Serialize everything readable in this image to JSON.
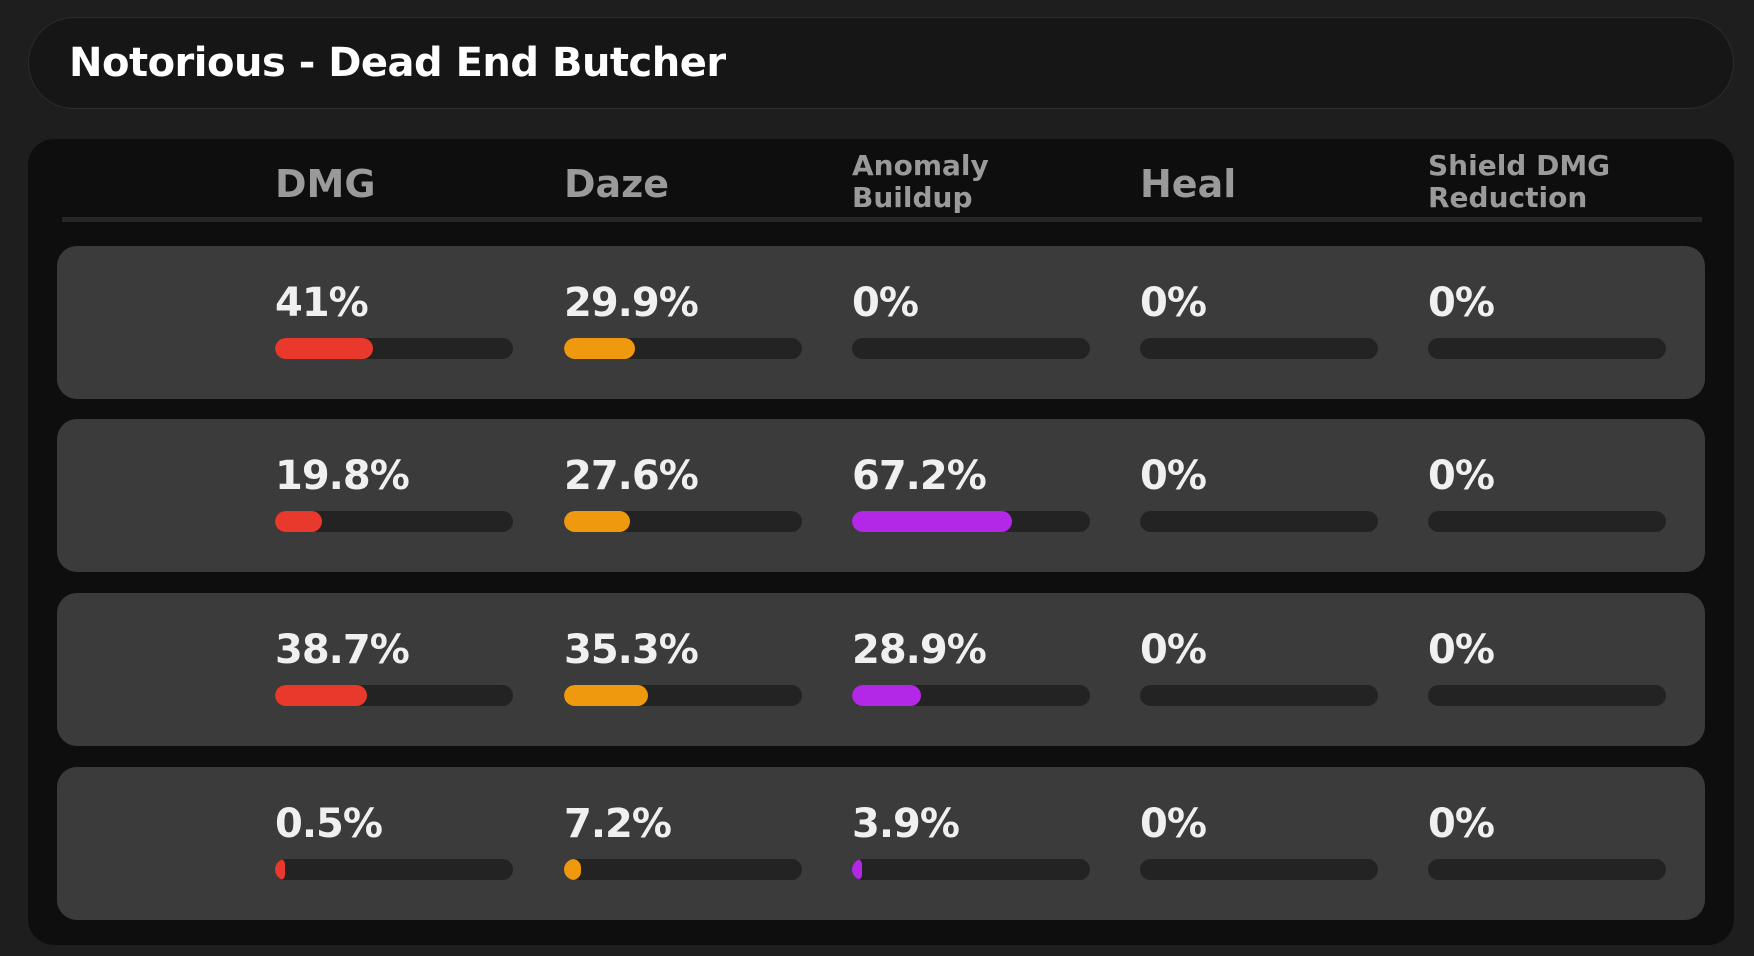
{
  "header": {
    "title": "Notorious - Dead End Butcher"
  },
  "table": {
    "xlim": [
      0,
      100
    ],
    "columns": [
      {
        "name": "DMG",
        "color": "#e8392c"
      },
      {
        "name": "Daze",
        "color": "#ef990e"
      },
      {
        "name": "Anomaly Buildup",
        "color": "#b328e6"
      },
      {
        "name": "Heal",
        "color": "#3ecf6a"
      },
      {
        "name": "Shield DMG Reduction",
        "color": "#3aa8e8"
      }
    ],
    "rows": [
      {
        "values": [
          41,
          29.9,
          0,
          0,
          0
        ],
        "value_labels": [
          "41%",
          "29.9%",
          "0%",
          "0%",
          "0%"
        ]
      },
      {
        "values": [
          19.8,
          27.6,
          67.2,
          0,
          0
        ],
        "value_labels": [
          "19.8%",
          "27.6%",
          "67.2%",
          "0%",
          "0%"
        ]
      },
      {
        "values": [
          38.7,
          35.3,
          28.9,
          0,
          0
        ],
        "value_labels": [
          "38.7%",
          "35.3%",
          "28.9%",
          "0%",
          "0%"
        ]
      },
      {
        "values": [
          0.5,
          7.2,
          3.9,
          0,
          0
        ],
        "value_labels": [
          "0.5%",
          "7.2%",
          "3.9%",
          "0%",
          "0%"
        ]
      }
    ]
  }
}
